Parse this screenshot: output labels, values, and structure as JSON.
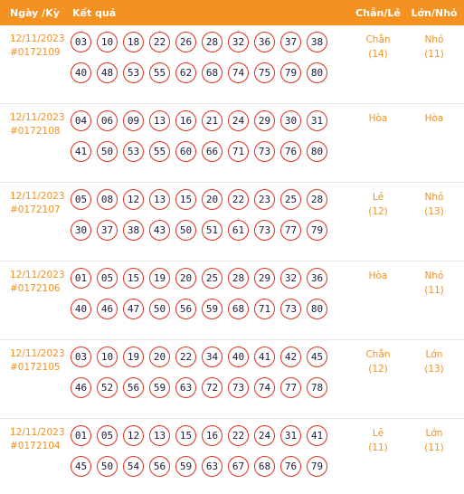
{
  "header": {
    "date_label": "Ngày /Kỳ",
    "result_label": "Kết quả",
    "chanle_label": "Chẵn/Lẻ",
    "lonnho_label": "Lớn/Nhỏ"
  },
  "colors": {
    "accent": "#f39121",
    "ball_border": "#e0301e"
  },
  "rows": [
    {
      "date": "12/11/2023",
      "ky": "#0172109",
      "numbers": [
        "03",
        "10",
        "18",
        "22",
        "26",
        "28",
        "32",
        "36",
        "37",
        "38",
        "40",
        "48",
        "53",
        "55",
        "62",
        "68",
        "74",
        "75",
        "79",
        "80"
      ],
      "chanle": "Chẵn",
      "chanle_count": "(14)",
      "lonnho": "Nhỏ",
      "lonnho_count": "(11)"
    },
    {
      "date": "12/11/2023",
      "ky": "#0172108",
      "numbers": [
        "04",
        "06",
        "09",
        "13",
        "16",
        "21",
        "24",
        "29",
        "30",
        "31",
        "41",
        "50",
        "53",
        "55",
        "60",
        "66",
        "71",
        "73",
        "76",
        "80"
      ],
      "chanle": "Hòa",
      "chanle_count": "",
      "lonnho": "Hòa",
      "lonnho_count": ""
    },
    {
      "date": "12/11/2023",
      "ky": "#0172107",
      "numbers": [
        "05",
        "08",
        "12",
        "13",
        "15",
        "20",
        "22",
        "23",
        "25",
        "28",
        "30",
        "37",
        "38",
        "43",
        "50",
        "51",
        "61",
        "73",
        "77",
        "79"
      ],
      "chanle": "Lẻ",
      "chanle_count": "(12)",
      "lonnho": "Nhỏ",
      "lonnho_count": "(13)"
    },
    {
      "date": "12/11/2023",
      "ky": "#0172106",
      "numbers": [
        "01",
        "05",
        "15",
        "19",
        "20",
        "25",
        "28",
        "29",
        "32",
        "36",
        "40",
        "46",
        "47",
        "50",
        "56",
        "59",
        "68",
        "71",
        "73",
        "80"
      ],
      "chanle": "Hòa",
      "chanle_count": "",
      "lonnho": "Nhỏ",
      "lonnho_count": "(11)"
    },
    {
      "date": "12/11/2023",
      "ky": "#0172105",
      "numbers": [
        "03",
        "10",
        "19",
        "20",
        "22",
        "34",
        "40",
        "41",
        "42",
        "45",
        "46",
        "52",
        "56",
        "59",
        "63",
        "72",
        "73",
        "74",
        "77",
        "78"
      ],
      "chanle": "Chẵn",
      "chanle_count": "(12)",
      "lonnho": "Lớn",
      "lonnho_count": "(13)"
    },
    {
      "date": "12/11/2023",
      "ky": "#0172104",
      "numbers": [
        "01",
        "05",
        "12",
        "13",
        "15",
        "16",
        "22",
        "24",
        "31",
        "41",
        "45",
        "50",
        "54",
        "56",
        "59",
        "63",
        "67",
        "68",
        "76",
        "79"
      ],
      "chanle": "Lẻ",
      "chanle_count": "(11)",
      "lonnho": "Lớn",
      "lonnho_count": "(11)"
    }
  ]
}
